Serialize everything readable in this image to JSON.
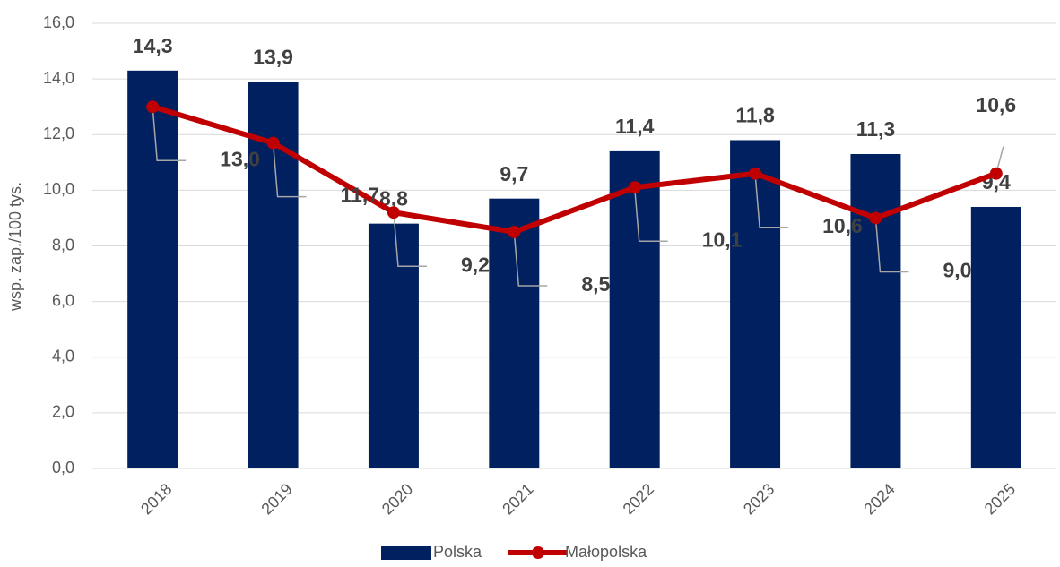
{
  "chart_data": {
    "type": "bar",
    "y_axis_label": "wsp. zap./100 tys.",
    "categories": [
      "2018",
      "2019",
      "2020",
      "2021",
      "2022",
      "2023",
      "2024",
      "2025"
    ],
    "series": [
      {
        "name": "Polska",
        "type": "bar",
        "color": "#002060",
        "values": [
          14.3,
          13.9,
          8.8,
          9.7,
          11.4,
          11.8,
          11.3,
          9.4
        ],
        "value_labels": [
          "14,3",
          "13,9",
          "8,8",
          "9,7",
          "11,4",
          "11,8",
          "11,3",
          "9,4"
        ]
      },
      {
        "name": "Małopolska",
        "type": "line",
        "color": "#c00000",
        "values": [
          13.0,
          11.7,
          9.2,
          8.5,
          10.1,
          10.6,
          9.0,
          10.6
        ],
        "value_labels": [
          "13,0",
          "11,7",
          "9,2",
          "8,5",
          "10,1",
          "10,6",
          "9,0",
          "10,6"
        ]
      }
    ],
    "ylim": [
      0,
      16
    ],
    "yticks": [
      {
        "value": 0,
        "label": "0,0"
      },
      {
        "value": 2,
        "label": "2,0"
      },
      {
        "value": 4,
        "label": "4,0"
      },
      {
        "value": 6,
        "label": "6,0"
      },
      {
        "value": 8,
        "label": "8,0"
      },
      {
        "value": 10,
        "label": "10,0"
      },
      {
        "value": 12,
        "label": "12,0"
      },
      {
        "value": 14,
        "label": "14,0"
      },
      {
        "value": 16,
        "label": "16,0"
      }
    ],
    "grid": true,
    "legend": "bottom"
  }
}
